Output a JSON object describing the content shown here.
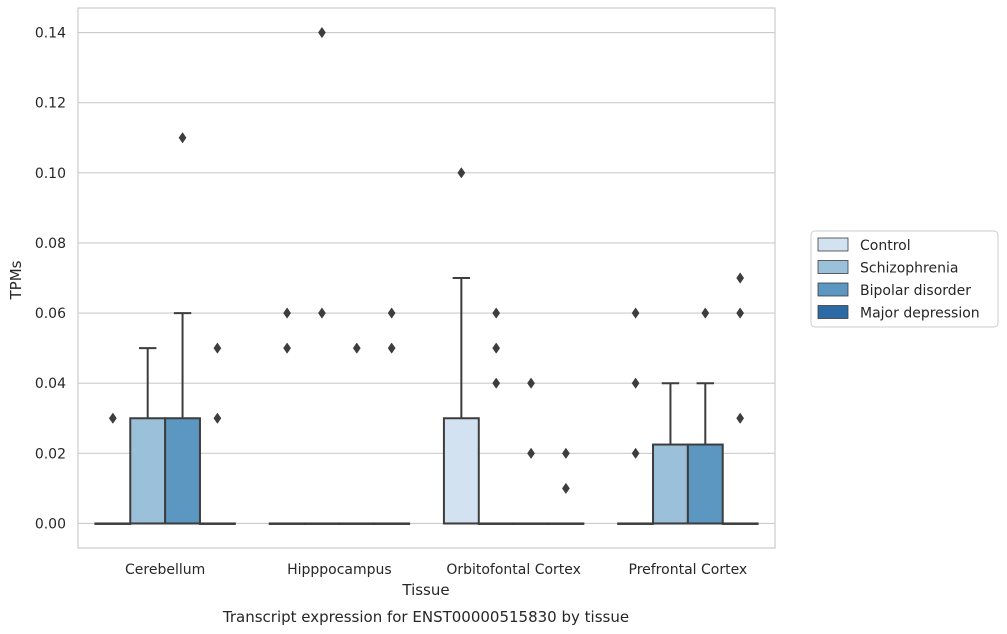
{
  "chart_data": {
    "type": "box",
    "title": "",
    "caption": "Transcript expression for ENST00000515830 by tissue",
    "xlabel": "Tissue",
    "ylabel": "TPMs",
    "ylim": [
      -0.007,
      0.147
    ],
    "yticks": [
      "0.00",
      "0.02",
      "0.04",
      "0.06",
      "0.08",
      "0.10",
      "0.12",
      "0.14"
    ],
    "grid": "horizontal",
    "legend_position": "right",
    "categories": [
      "Cerebellum",
      "Hipppocampus",
      "Orbitofontal Cortex",
      "Prefrontal Cortex"
    ],
    "series": [
      {
        "name": "Control",
        "color": "#d3e2f0",
        "boxes": [
          {
            "q1": 0,
            "median": 0,
            "q3": 0,
            "whislo": 0,
            "whishi": 0,
            "fliers": []
          },
          {
            "q1": 0,
            "median": 0,
            "q3": 0,
            "whislo": 0,
            "whishi": 0,
            "fliers": [
              0.05,
              0.06
            ]
          },
          {
            "q1": 0,
            "median": 0,
            "q3": 0.03,
            "whislo": 0,
            "whishi": 0.07,
            "fliers": [
              0.1
            ]
          },
          {
            "q1": 0,
            "median": 0,
            "q3": 0,
            "whislo": 0,
            "whishi": 0,
            "fliers": [
              0.02,
              0.04,
              0.06
            ]
          }
        ]
      },
      {
        "name": "Schizophrenia",
        "color": "#9ac0da",
        "boxes": [
          {
            "q1": 0,
            "median": 0,
            "q3": 0.03,
            "whislo": 0,
            "whishi": 0.05,
            "fliers": []
          },
          {
            "q1": 0,
            "median": 0,
            "q3": 0,
            "whislo": 0,
            "whishi": 0,
            "fliers": [
              0.06,
              0.14
            ]
          },
          {
            "q1": 0,
            "median": 0,
            "q3": 0,
            "whislo": 0,
            "whishi": 0,
            "fliers": [
              0.04,
              0.05,
              0.06
            ]
          },
          {
            "q1": 0,
            "median": 0,
            "q3": 0.0225,
            "whislo": 0,
            "whishi": 0.04,
            "fliers": []
          }
        ]
      },
      {
        "name": "Bipolar disorder",
        "color": "#5b97c1",
        "boxes": [
          {
            "q1": 0,
            "median": 0,
            "q3": 0.03,
            "whislo": 0,
            "whishi": 0.06,
            "fliers": [
              0.11
            ]
          },
          {
            "q1": 0,
            "median": 0,
            "q3": 0,
            "whislo": 0,
            "whishi": 0,
            "fliers": [
              0.05
            ]
          },
          {
            "q1": 0,
            "median": 0,
            "q3": 0,
            "whislo": 0,
            "whishi": 0,
            "fliers": [
              0.02,
              0.04
            ]
          },
          {
            "q1": 0,
            "median": 0,
            "q3": 0.0225,
            "whislo": 0,
            "whishi": 0.04,
            "fliers": [
              0.06
            ]
          }
        ]
      },
      {
        "name": "Major depression",
        "color": "#2b6aa5",
        "boxes": [
          {
            "q1": 0,
            "median": 0,
            "q3": 0,
            "whislo": 0,
            "whishi": 0,
            "fliers": [
              0.03,
              0.05
            ]
          },
          {
            "q1": 0,
            "median": 0,
            "q3": 0,
            "whislo": 0,
            "whishi": 0,
            "fliers": [
              0.05,
              0.06
            ]
          },
          {
            "q1": 0,
            "median": 0,
            "q3": 0,
            "whislo": 0,
            "whishi": 0,
            "fliers": [
              0.01,
              0.02
            ]
          },
          {
            "q1": 0,
            "median": 0,
            "q3": 0,
            "whislo": 0,
            "whishi": 0,
            "fliers": [
              0.03,
              0.06,
              0.07
            ]
          }
        ]
      }
    ],
    "extra_fliers": [
      {
        "category": 0,
        "series": 0,
        "value": 0.03
      }
    ]
  }
}
